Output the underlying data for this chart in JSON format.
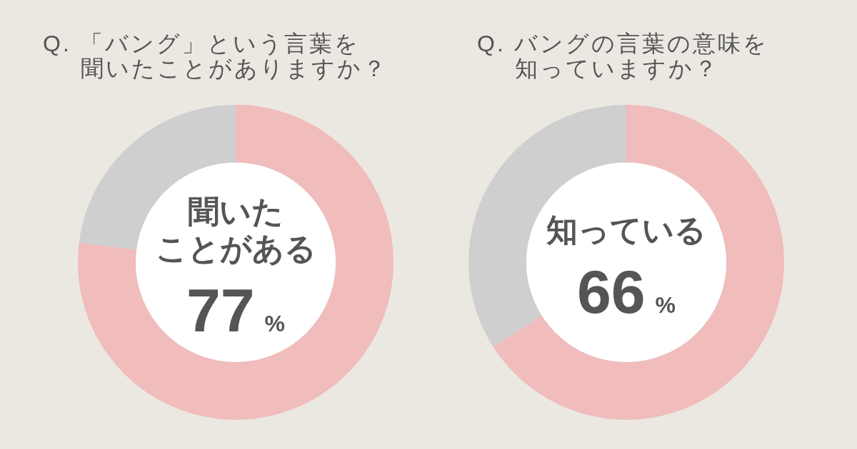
{
  "chart_data": [
    {
      "type": "donut",
      "title": "Q. 「バング」という言葉を聞いたことがありますか？",
      "categories": [
        "聞いたことがある",
        null
      ],
      "values": [
        77,
        23
      ],
      "colors": [
        "#f0bcbc",
        "#cfcfcf"
      ],
      "value_labels": [
        "77%",
        null
      ]
    },
    {
      "type": "donut",
      "title": "Q. バングの言葉の意味を知っていますか？",
      "categories": [
        "知っている",
        null
      ],
      "values": [
        66,
        34
      ],
      "colors": [
        "#f0bcbc",
        "#cfcfcf"
      ],
      "value_labels": [
        "66%",
        null
      ]
    }
  ]
}
